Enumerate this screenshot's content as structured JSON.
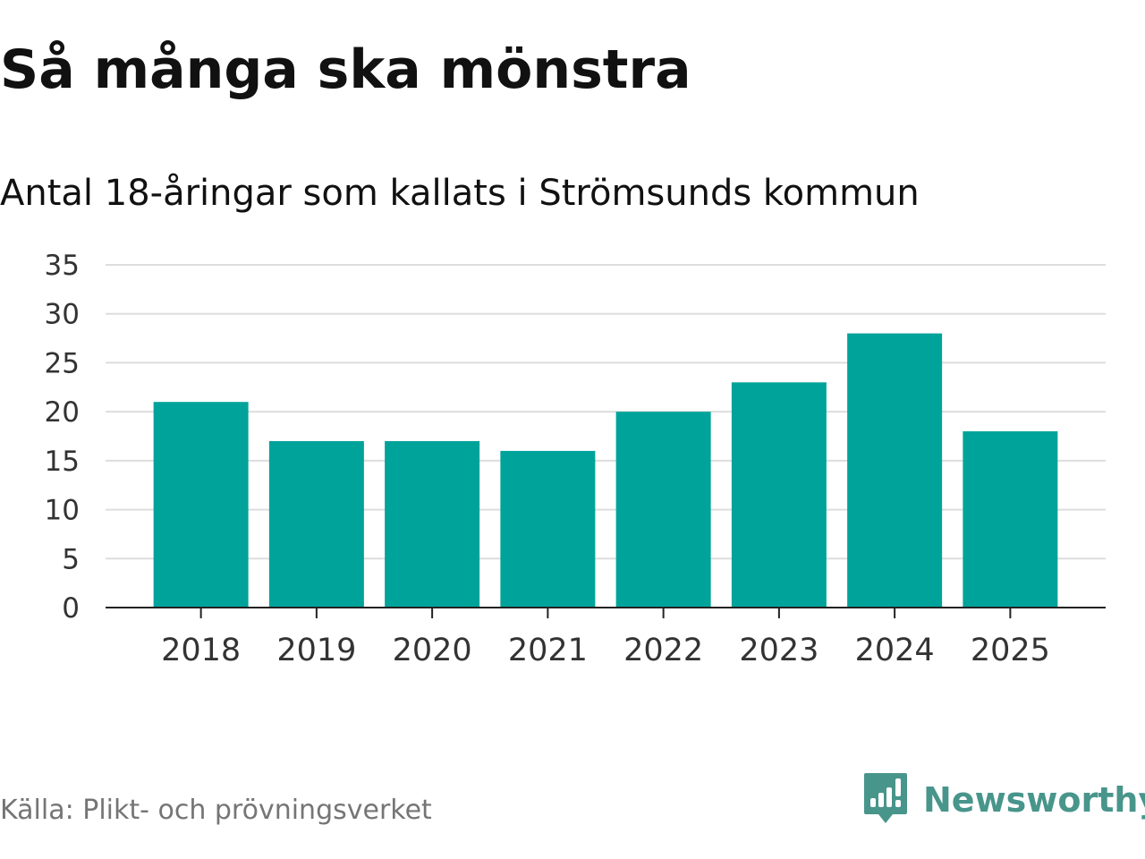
{
  "header": {
    "title": "Så många ska mönstra",
    "subtitle": "Antal 18-åringar som kallats i Strömsunds kommun"
  },
  "footer": {
    "source": "Källa: Plikt- och prövningsverket",
    "brand_name": "Newsworthy",
    "brand_icon": "newsworthy-logo-icon"
  },
  "colors": {
    "bar": "#00a39a",
    "grid": "#dddddd",
    "axis": "#222222",
    "text": "#111111",
    "tick_text": "#333333",
    "source_text": "#757575",
    "brand": "#48958b"
  },
  "chart_data": {
    "type": "bar",
    "title": "Så många ska mönstra",
    "subtitle": "Antal 18-åringar som kallats i Strömsunds kommun",
    "xlabel": "",
    "ylabel": "",
    "categories": [
      "2018",
      "2019",
      "2020",
      "2021",
      "2022",
      "2023",
      "2024",
      "2025"
    ],
    "values": [
      21,
      17,
      17,
      16,
      20,
      23,
      28,
      18
    ],
    "ylim": [
      0,
      35
    ],
    "yticks": [
      0,
      5,
      10,
      15,
      20,
      25,
      30,
      35
    ],
    "grid": true,
    "legend": "none"
  }
}
